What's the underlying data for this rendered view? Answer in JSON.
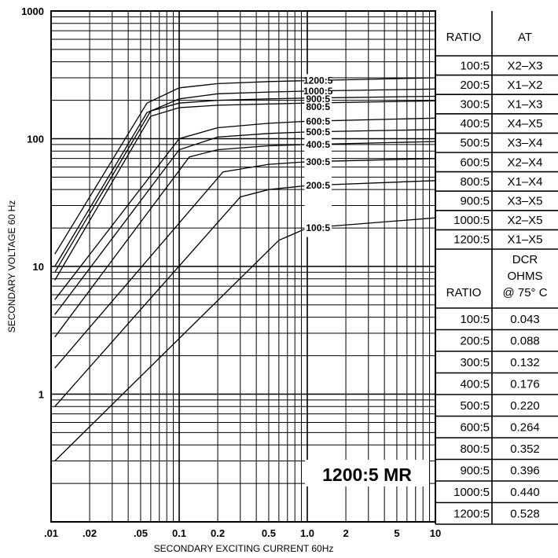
{
  "chart_data": {
    "type": "line",
    "xlabel": "SECONDARY  EXCITING  CURRENT  60Hz",
    "ylabel": "SECONDARY  VOLTAGE  60  Hz",
    "xscale": "log",
    "yscale": "log",
    "xlim": [
      0.01,
      10
    ],
    "ylim": [
      0.1,
      1000
    ],
    "grid": true,
    "x_ticks": [
      {
        "value": 0.01,
        "label": ".01"
      },
      {
        "value": 0.02,
        "label": ".02"
      },
      {
        "value": 0.05,
        "label": ".05"
      },
      {
        "value": 0.1,
        "label": "0.1"
      },
      {
        "value": 0.2,
        "label": "0.2"
      },
      {
        "value": 0.5,
        "label": "0.5"
      },
      {
        "value": 1,
        "label": "1.0"
      },
      {
        "value": 2,
        "label": "2"
      },
      {
        "value": 5,
        "label": "5"
      },
      {
        "value": 10,
        "label": "10"
      }
    ],
    "y_ticks": [
      {
        "value": 1000,
        "label": "1000"
      },
      {
        "value": 100,
        "label": "100"
      },
      {
        "value": 10,
        "label": "10"
      },
      {
        "value": 1,
        "label": "1"
      }
    ],
    "series": [
      {
        "name": "1200:5",
        "x": [
          0.0107,
          0.056,
          0.1,
          0.2,
          0.5,
          1.0,
          10
        ],
        "y": [
          12.5,
          190,
          250,
          270,
          280,
          285,
          300
        ]
      },
      {
        "name": "1000:5",
        "x": [
          0.0107,
          0.056,
          0.1,
          0.2,
          0.5,
          1.0,
          10
        ],
        "y": [
          10,
          160,
          205,
          225,
          232,
          236,
          245
        ]
      },
      {
        "name": "900:5",
        "x": [
          0.0107,
          0.06,
          0.1,
          0.2,
          0.5,
          1.0,
          10
        ],
        "y": [
          9,
          165,
          190,
          200,
          205,
          208,
          215
        ]
      },
      {
        "name": "800:5",
        "x": [
          0.0107,
          0.06,
          0.1,
          0.2,
          0.5,
          1.0,
          10
        ],
        "y": [
          7.8,
          150,
          175,
          183,
          187,
          190,
          198
        ]
      },
      {
        "name": "600:5",
        "x": [
          0.0107,
          0.1,
          0.2,
          0.5,
          1.0,
          10
        ],
        "y": [
          5.5,
          100,
          122,
          132,
          137,
          145
        ]
      },
      {
        "name": "500:5",
        "x": [
          0.0107,
          0.1,
          0.2,
          0.5,
          1.0,
          10
        ],
        "y": [
          4.2,
          82,
          103,
          110,
          113,
          118
        ]
      },
      {
        "name": "400:5",
        "x": [
          0.0107,
          0.12,
          0.2,
          0.5,
          1.0,
          10
        ],
        "y": [
          2.8,
          72,
          82,
          88,
          90,
          95
        ]
      },
      {
        "name": "300:5",
        "x": [
          0.0107,
          0.22,
          0.5,
          1.0,
          10
        ],
        "y": [
          1.6,
          55,
          63,
          66,
          70
        ]
      },
      {
        "name": "200:5",
        "x": [
          0.0107,
          0.3,
          0.5,
          1.0,
          10
        ],
        "y": [
          0.8,
          35,
          40,
          43,
          47
        ]
      },
      {
        "name": "100:5",
        "x": [
          0.0107,
          0.6,
          1.0,
          10
        ],
        "y": [
          0.3,
          16,
          20,
          24
        ]
      }
    ]
  },
  "table": {
    "at_headers": {
      "ratio": "RATIO",
      "taps": "AT"
    },
    "at_rows": [
      {
        "ratio": "100:5",
        "taps": "X2–X3"
      },
      {
        "ratio": "200:5",
        "taps": "X1–X2"
      },
      {
        "ratio": "300:5",
        "taps": "X1–X3"
      },
      {
        "ratio": "400:5",
        "taps": "X4–X5"
      },
      {
        "ratio": "500:5",
        "taps": "X3–X4"
      },
      {
        "ratio": "600:5",
        "taps": "X2–X4"
      },
      {
        "ratio": "800:5",
        "taps": "X1–X4"
      },
      {
        "ratio": "900:5",
        "taps": "X3–X5"
      },
      {
        "ratio": "1000:5",
        "taps": "X2–X5"
      },
      {
        "ratio": "1200:5",
        "taps": "X1–X5"
      }
    ],
    "dcr_headers": {
      "ratio": "RATIO",
      "dcr_line1": "DCR",
      "dcr_line2": "OHMS",
      "dcr_line3": "@ 75° C"
    },
    "dcr_rows": [
      {
        "ratio": "100:5",
        "dcr": "0.043"
      },
      {
        "ratio": "200:5",
        "dcr": "0.088"
      },
      {
        "ratio": "300:5",
        "dcr": "0.132"
      },
      {
        "ratio": "400:5",
        "dcr": "0.176"
      },
      {
        "ratio": "500:5",
        "dcr": "0.220"
      },
      {
        "ratio": "600:5",
        "dcr": "0.264"
      },
      {
        "ratio": "800:5",
        "dcr": "0.352"
      },
      {
        "ratio": "900:5",
        "dcr": "0.396"
      },
      {
        "ratio": "1000:5",
        "dcr": "0.440"
      },
      {
        "ratio": "1200:5",
        "dcr": "0.528"
      }
    ]
  },
  "badge": "1200:5 MR"
}
